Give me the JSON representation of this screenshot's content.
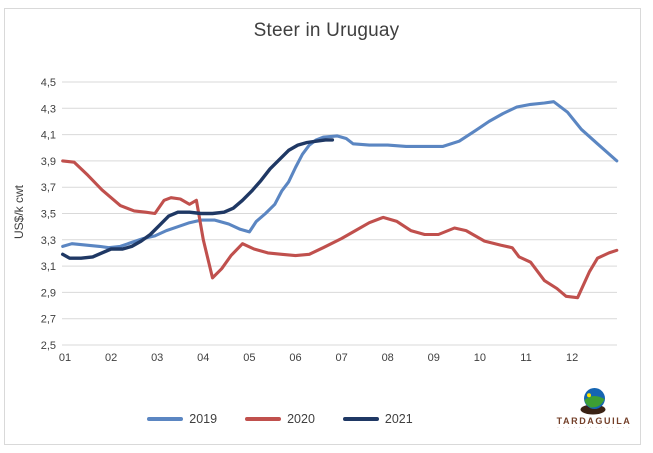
{
  "chart_data": {
    "type": "line",
    "title": "Steer in Uruguay",
    "xlabel": "",
    "ylabel": "US$/k cwt",
    "ylim": [
      2.5,
      4.5
    ],
    "ytick_step": 0.2,
    "ytick_labels": [
      "4,5",
      "4,3",
      "4,1",
      "3,9",
      "3,7",
      "3,5",
      "3,3",
      "3,1",
      "2,9",
      "2,7",
      "2,5"
    ],
    "xtick_labels": [
      "01",
      "02",
      "03",
      "04",
      "05",
      "06",
      "07",
      "08",
      "09",
      "10",
      "11",
      "12"
    ],
    "x_unit": "month (weekly data points)",
    "xlim": [
      0.9,
      13.05
    ],
    "grid": "horizontal",
    "grid_color": "#d9d9d9",
    "legend_position": "bottom",
    "series": [
      {
        "name": "2019",
        "color": "#5b86c2",
        "points": [
          [
            0.95,
            3.25
          ],
          [
            1.15,
            3.27
          ],
          [
            1.45,
            3.26
          ],
          [
            1.75,
            3.25
          ],
          [
            1.95,
            3.24
          ],
          [
            2.2,
            3.25
          ],
          [
            2.45,
            3.28
          ],
          [
            2.7,
            3.31
          ],
          [
            2.95,
            3.33
          ],
          [
            3.2,
            3.37
          ],
          [
            3.45,
            3.4
          ],
          [
            3.7,
            3.43
          ],
          [
            3.95,
            3.45
          ],
          [
            4.25,
            3.45
          ],
          [
            4.55,
            3.42
          ],
          [
            4.8,
            3.38
          ],
          [
            5.0,
            3.36
          ],
          [
            5.15,
            3.44
          ],
          [
            5.35,
            3.5
          ],
          [
            5.55,
            3.57
          ],
          [
            5.7,
            3.67
          ],
          [
            5.85,
            3.74
          ],
          [
            6.0,
            3.85
          ],
          [
            6.15,
            3.95
          ],
          [
            6.3,
            4.02
          ],
          [
            6.45,
            4.06
          ],
          [
            6.6,
            4.08
          ],
          [
            6.9,
            4.09
          ],
          [
            7.1,
            4.07
          ],
          [
            7.25,
            4.03
          ],
          [
            7.6,
            4.02
          ],
          [
            8.0,
            4.02
          ],
          [
            8.4,
            4.01
          ],
          [
            8.8,
            4.01
          ],
          [
            9.2,
            4.01
          ],
          [
            9.55,
            4.05
          ],
          [
            9.9,
            4.13
          ],
          [
            10.2,
            4.2
          ],
          [
            10.5,
            4.26
          ],
          [
            10.8,
            4.31
          ],
          [
            11.1,
            4.33
          ],
          [
            11.4,
            4.34
          ],
          [
            11.6,
            4.35
          ],
          [
            11.9,
            4.27
          ],
          [
            12.2,
            4.14
          ],
          [
            12.55,
            4.03
          ],
          [
            12.97,
            3.9
          ]
        ]
      },
      {
        "name": "2020",
        "color": "#c0504d",
        "points": [
          [
            0.95,
            3.9
          ],
          [
            1.2,
            3.89
          ],
          [
            1.5,
            3.79
          ],
          [
            1.8,
            3.68
          ],
          [
            2.0,
            3.62
          ],
          [
            2.2,
            3.56
          ],
          [
            2.5,
            3.52
          ],
          [
            2.75,
            3.51
          ],
          [
            2.95,
            3.5
          ],
          [
            3.15,
            3.6
          ],
          [
            3.3,
            3.62
          ],
          [
            3.5,
            3.61
          ],
          [
            3.7,
            3.57
          ],
          [
            3.85,
            3.6
          ],
          [
            4.0,
            3.3
          ],
          [
            4.2,
            3.01
          ],
          [
            4.4,
            3.08
          ],
          [
            4.6,
            3.18
          ],
          [
            4.85,
            3.27
          ],
          [
            5.1,
            3.23
          ],
          [
            5.4,
            3.2
          ],
          [
            5.7,
            3.19
          ],
          [
            6.0,
            3.18
          ],
          [
            6.3,
            3.19
          ],
          [
            6.6,
            3.24
          ],
          [
            7.0,
            3.31
          ],
          [
            7.3,
            3.37
          ],
          [
            7.6,
            3.43
          ],
          [
            7.9,
            3.47
          ],
          [
            8.2,
            3.44
          ],
          [
            8.5,
            3.37
          ],
          [
            8.8,
            3.34
          ],
          [
            9.1,
            3.34
          ],
          [
            9.45,
            3.39
          ],
          [
            9.7,
            3.37
          ],
          [
            9.9,
            3.33
          ],
          [
            10.1,
            3.29
          ],
          [
            10.45,
            3.26
          ],
          [
            10.7,
            3.24
          ],
          [
            10.85,
            3.17
          ],
          [
            11.1,
            3.13
          ],
          [
            11.4,
            2.99
          ],
          [
            11.67,
            2.93
          ],
          [
            11.87,
            2.87
          ],
          [
            12.12,
            2.86
          ],
          [
            12.38,
            3.06
          ],
          [
            12.55,
            3.16
          ],
          [
            12.8,
            3.2
          ],
          [
            12.97,
            3.22
          ]
        ]
      },
      {
        "name": "2021",
        "color": "#1f3864",
        "points": [
          [
            0.95,
            3.19
          ],
          [
            1.1,
            3.16
          ],
          [
            1.35,
            3.16
          ],
          [
            1.6,
            3.17
          ],
          [
            1.8,
            3.2
          ],
          [
            2.0,
            3.23
          ],
          [
            2.25,
            3.23
          ],
          [
            2.45,
            3.25
          ],
          [
            2.65,
            3.29
          ],
          [
            2.85,
            3.34
          ],
          [
            3.05,
            3.41
          ],
          [
            3.25,
            3.48
          ],
          [
            3.45,
            3.51
          ],
          [
            3.7,
            3.51
          ],
          [
            3.95,
            3.5
          ],
          [
            4.2,
            3.5
          ],
          [
            4.45,
            3.51
          ],
          [
            4.65,
            3.54
          ],
          [
            4.85,
            3.6
          ],
          [
            5.05,
            3.67
          ],
          [
            5.25,
            3.75
          ],
          [
            5.45,
            3.84
          ],
          [
            5.65,
            3.91
          ],
          [
            5.85,
            3.98
          ],
          [
            6.05,
            4.02
          ],
          [
            6.25,
            4.04
          ],
          [
            6.45,
            4.05
          ],
          [
            6.65,
            4.06
          ],
          [
            6.8,
            4.06
          ]
        ]
      }
    ]
  },
  "logo": {
    "name": "TARDAGUILA",
    "subtext": "· · · · · · · · · · · · · ·"
  }
}
